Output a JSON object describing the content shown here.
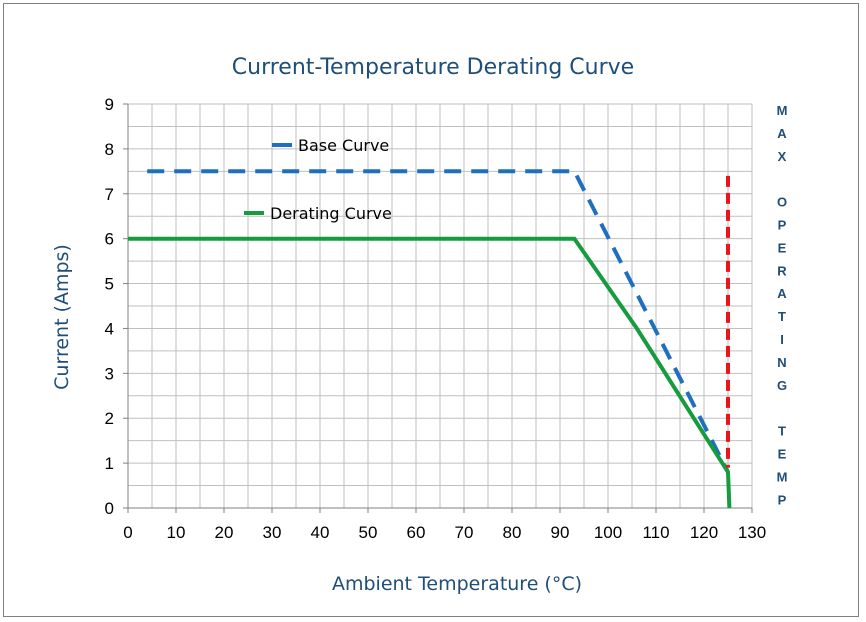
{
  "chart_data": {
    "type": "line",
    "title": "Current-Temperature Derating Curve",
    "xlabel": "Ambient Temperature (°C)",
    "ylabel": "Current (Amps)",
    "xlim": [
      0,
      130
    ],
    "ylim": [
      0,
      9
    ],
    "x_ticks": [
      0,
      10,
      20,
      30,
      40,
      50,
      60,
      70,
      80,
      90,
      100,
      110,
      120,
      130
    ],
    "y_ticks": [
      0,
      1,
      2,
      3,
      4,
      5,
      6,
      7,
      8,
      9
    ],
    "grid": true,
    "legend_position": "top-left",
    "series": [
      {
        "name": "Base Curve",
        "style": "dashed",
        "color": "#1f6fbf",
        "points": [
          [
            4,
            7.5
          ],
          [
            93,
            7.5
          ],
          [
            125,
            0.8
          ]
        ]
      },
      {
        "name": "Derating Curve",
        "style": "solid",
        "color": "#169b3f",
        "points": [
          [
            0,
            6
          ],
          [
            93,
            6
          ],
          [
            106,
            4
          ],
          [
            125,
            0.8
          ],
          [
            125.3,
            0
          ]
        ]
      }
    ],
    "reference_line": {
      "x": 125,
      "y_range": [
        0.9,
        7.4
      ],
      "style": "dashed",
      "color": "#e8161a",
      "label_letters": [
        "M",
        "A",
        "X",
        "",
        "O",
        "P",
        "E",
        "R",
        "A",
        "T",
        "I",
        "N",
        "G",
        "",
        "T",
        "E",
        "M",
        "P"
      ]
    }
  }
}
